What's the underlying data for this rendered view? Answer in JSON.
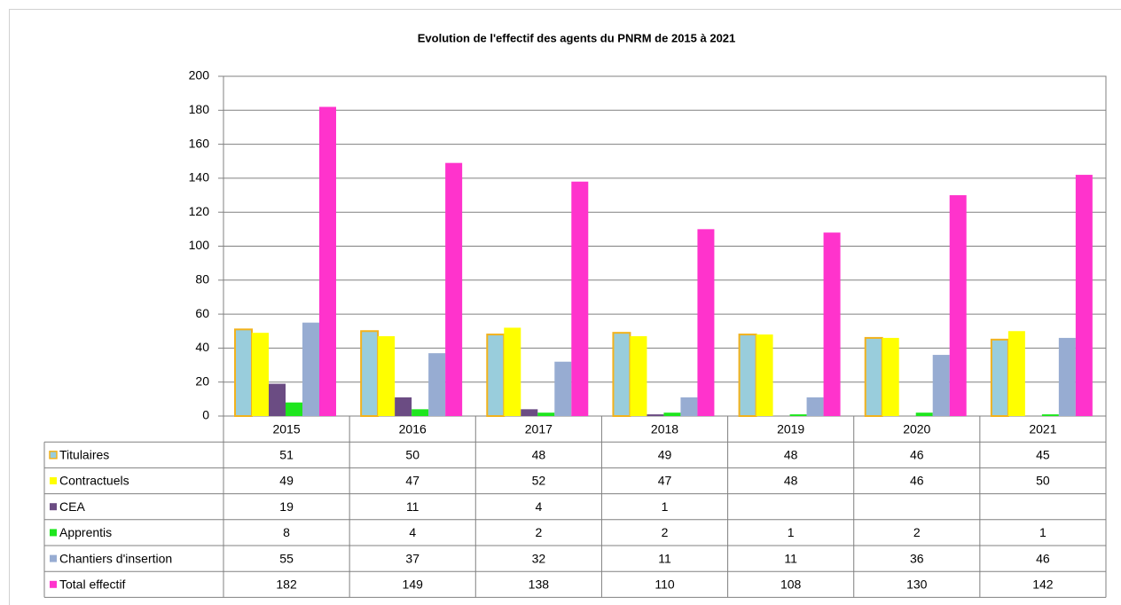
{
  "chart_data": {
    "type": "bar",
    "title": "Evolution de l'effectif des agents du PNRM de 2015 à 2021",
    "categories": [
      "2015",
      "2016",
      "2017",
      "2018",
      "2019",
      "2020",
      "2021"
    ],
    "series": [
      {
        "name": "Titulaires",
        "color": "#99cddc",
        "edgecolor": "#f2b21c",
        "values": [
          51,
          50,
          48,
          49,
          48,
          46,
          45
        ]
      },
      {
        "name": "Contractuels",
        "color": "#ffff00",
        "values": [
          49,
          47,
          52,
          47,
          48,
          46,
          50
        ]
      },
      {
        "name": "CEA",
        "color": "#6b4c83",
        "values": [
          19,
          11,
          4,
          1,
          null,
          null,
          null
        ]
      },
      {
        "name": "Apprentis",
        "color": "#1ee61e",
        "values": [
          8,
          4,
          2,
          2,
          1,
          2,
          1
        ]
      },
      {
        "name": "Chantiers d'insertion",
        "color": "#97acd2",
        "values": [
          55,
          37,
          32,
          11,
          11,
          36,
          46
        ]
      },
      {
        "name": "Total effectif",
        "color": "#ff33cc",
        "values": [
          182,
          149,
          138,
          110,
          108,
          130,
          142
        ]
      }
    ],
    "ylim": [
      0,
      200
    ],
    "yticks": [
      0,
      20,
      40,
      60,
      80,
      100,
      120,
      140,
      160,
      180,
      200
    ],
    "grid": true
  }
}
